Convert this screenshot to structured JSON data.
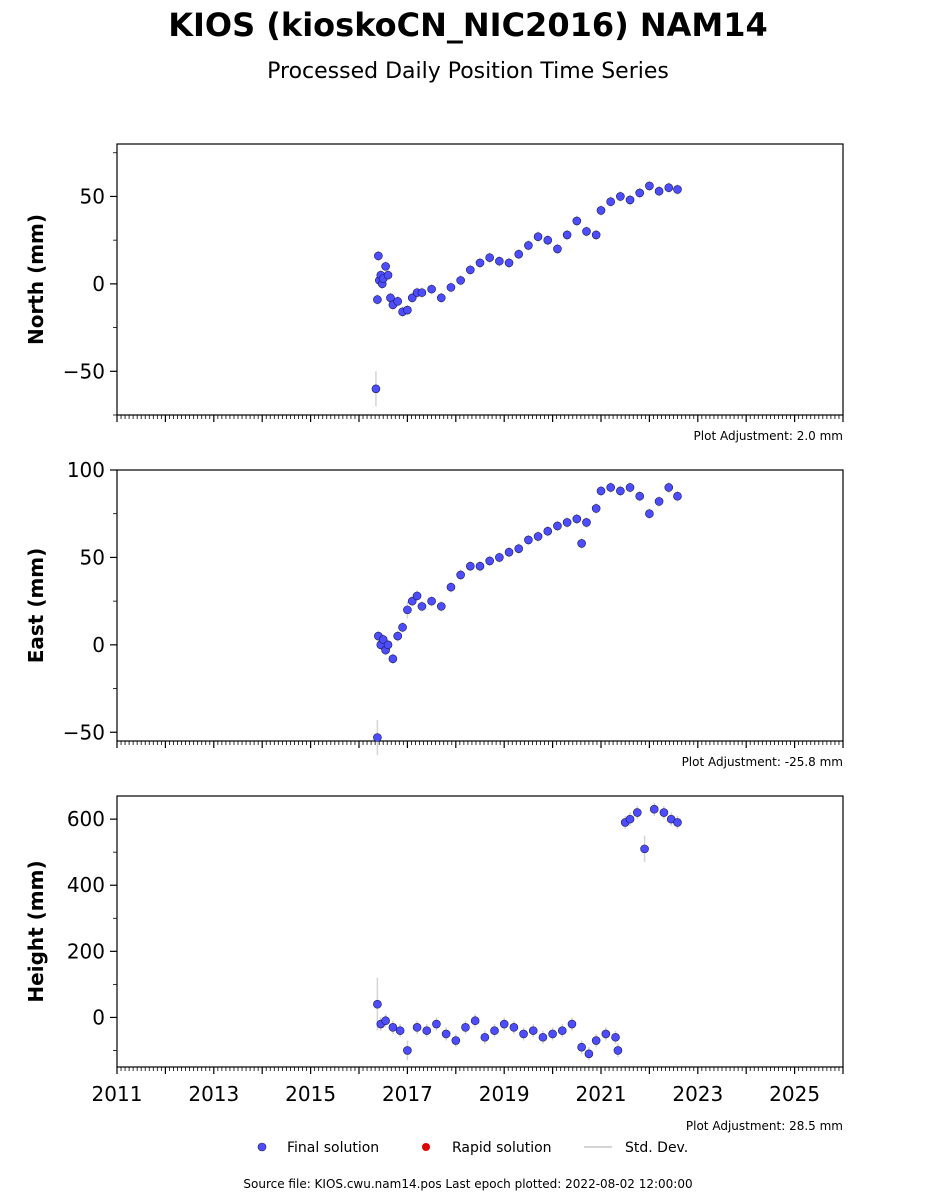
{
  "title": "KIOS (kioskoCN_NIC2016) NAM14",
  "subtitle": "Processed Daily Position Time Series",
  "source_note": "Source file: KIOS.cwu.nam14.pos  Last epoch plotted: 2022-08-02 12:00:00",
  "legend": {
    "final": "Final solution",
    "rapid": "Rapid solution",
    "stddev": "Std. Dev."
  },
  "colors": {
    "final_fill": "#4d4dff",
    "final_edge": "#1a1a4d",
    "rapid": "#e00000",
    "stddev": "#d4d4d4"
  },
  "chart_data": [
    {
      "type": "scatter",
      "ylabel": "North (mm)",
      "adjustment": "Plot Adjustment: 2.0 mm",
      "xlim": [
        2011,
        2026
      ],
      "ylim": [
        -75,
        80
      ],
      "yticks": [
        -50,
        0,
        50
      ],
      "series": [
        {
          "name": "Final solution",
          "x": [
            2016.35,
            2016.38,
            2016.4,
            2016.42,
            2016.45,
            2016.48,
            2016.5,
            2016.55,
            2016.6,
            2016.65,
            2016.7,
            2016.8,
            2016.9,
            2017.0,
            2017.1,
            2017.2,
            2017.3,
            2017.5,
            2017.7,
            2017.9,
            2018.1,
            2018.3,
            2018.5,
            2018.7,
            2018.9,
            2019.1,
            2019.3,
            2019.5,
            2019.7,
            2019.9,
            2020.1,
            2020.3,
            2020.5,
            2020.7,
            2020.9,
            2021.0,
            2021.2,
            2021.4,
            2021.6,
            2021.8,
            2022.0,
            2022.2,
            2022.4,
            2022.58
          ],
          "y": [
            -60,
            -9,
            16,
            2,
            5,
            0,
            3,
            10,
            5,
            -8,
            -12,
            -10,
            -16,
            -15,
            -8,
            -5,
            -5,
            -3,
            -8,
            -2,
            2,
            8,
            12,
            15,
            13,
            12,
            17,
            22,
            27,
            25,
            20,
            28,
            36,
            30,
            28,
            42,
            47,
            50,
            48,
            52,
            56,
            53,
            55,
            54
          ],
          "err": [
            10,
            3,
            3,
            3,
            3,
            3,
            3,
            3,
            3,
            3,
            3,
            3,
            3,
            3,
            3,
            3,
            3,
            3,
            3,
            3,
            3,
            3,
            3,
            3,
            3,
            3,
            3,
            3,
            3,
            3,
            3,
            3,
            3,
            3,
            3,
            3,
            3,
            3,
            3,
            3,
            3,
            3,
            3,
            3
          ]
        },
        {
          "name": "Rapid solution",
          "x": [],
          "y": []
        }
      ]
    },
    {
      "type": "scatter",
      "ylabel": "East (mm)",
      "adjustment": "Plot Adjustment: -25.8 mm",
      "xlim": [
        2011,
        2026
      ],
      "ylim": [
        -55,
        100
      ],
      "yticks": [
        -50,
        0,
        50,
        100
      ],
      "series": [
        {
          "name": "Final solution",
          "x": [
            2016.38,
            2016.4,
            2016.45,
            2016.5,
            2016.55,
            2016.6,
            2016.7,
            2016.8,
            2016.9,
            2017.0,
            2017.1,
            2017.2,
            2017.3,
            2017.5,
            2017.7,
            2017.9,
            2018.1,
            2018.3,
            2018.5,
            2018.7,
            2018.9,
            2019.1,
            2019.3,
            2019.5,
            2019.7,
            2019.9,
            2020.1,
            2020.3,
            2020.5,
            2020.6,
            2020.7,
            2020.9,
            2021.0,
            2021.2,
            2021.4,
            2021.6,
            2021.8,
            2022.0,
            2022.2,
            2022.4,
            2022.58
          ],
          "y": [
            -53,
            5,
            0,
            3,
            -3,
            0,
            -8,
            5,
            10,
            20,
            25,
            28,
            22,
            25,
            22,
            33,
            40,
            45,
            45,
            48,
            50,
            53,
            55,
            60,
            62,
            65,
            68,
            70,
            72,
            58,
            70,
            78,
            88,
            90,
            88,
            90,
            85,
            75,
            82,
            90,
            85
          ],
          "err": [
            10,
            3,
            3,
            3,
            3,
            3,
            3,
            3,
            3,
            5,
            3,
            3,
            3,
            3,
            3,
            3,
            3,
            3,
            3,
            3,
            3,
            3,
            3,
            3,
            3,
            3,
            3,
            3,
            3,
            3,
            3,
            3,
            3,
            3,
            3,
            3,
            3,
            3,
            3,
            3,
            3
          ]
        },
        {
          "name": "Rapid solution",
          "x": [],
          "y": []
        }
      ]
    },
    {
      "type": "scatter",
      "ylabel": "Height (mm)",
      "adjustment": "Plot Adjustment: 28.5 mm",
      "xlim": [
        2011,
        2026
      ],
      "ylim": [
        -150,
        670
      ],
      "yticks": [
        0,
        200,
        400,
        600
      ],
      "xticks": [
        2011,
        2013,
        2015,
        2017,
        2019,
        2021,
        2023,
        2025
      ],
      "series": [
        {
          "name": "Final solution",
          "x": [
            2016.38,
            2016.45,
            2016.55,
            2016.7,
            2016.85,
            2017.0,
            2017.2,
            2017.4,
            2017.6,
            2017.8,
            2018.0,
            2018.2,
            2018.4,
            2018.6,
            2018.8,
            2019.0,
            2019.2,
            2019.4,
            2019.6,
            2019.8,
            2020.0,
            2020.2,
            2020.4,
            2020.6,
            2020.75,
            2020.9,
            2021.1,
            2021.3,
            2021.35,
            2021.5,
            2021.6,
            2021.75,
            2021.9,
            2022.1,
            2022.3,
            2022.45,
            2022.58
          ],
          "y": [
            40,
            -20,
            -10,
            -30,
            -40,
            -100,
            -30,
            -40,
            -20,
            -50,
            -70,
            -30,
            -10,
            -60,
            -40,
            -20,
            -30,
            -50,
            -40,
            -60,
            -50,
            -40,
            -20,
            -90,
            -110,
            -70,
            -50,
            -60,
            -100,
            590,
            600,
            620,
            510,
            630,
            620,
            600,
            590
          ],
          "err": [
            80,
            20,
            20,
            20,
            20,
            30,
            20,
            20,
            20,
            20,
            20,
            20,
            20,
            20,
            20,
            20,
            20,
            20,
            20,
            20,
            20,
            20,
            20,
            20,
            20,
            20,
            20,
            20,
            20,
            20,
            20,
            20,
            40,
            20,
            20,
            20,
            20
          ]
        },
        {
          "name": "Rapid solution",
          "x": [],
          "y": []
        }
      ]
    }
  ]
}
